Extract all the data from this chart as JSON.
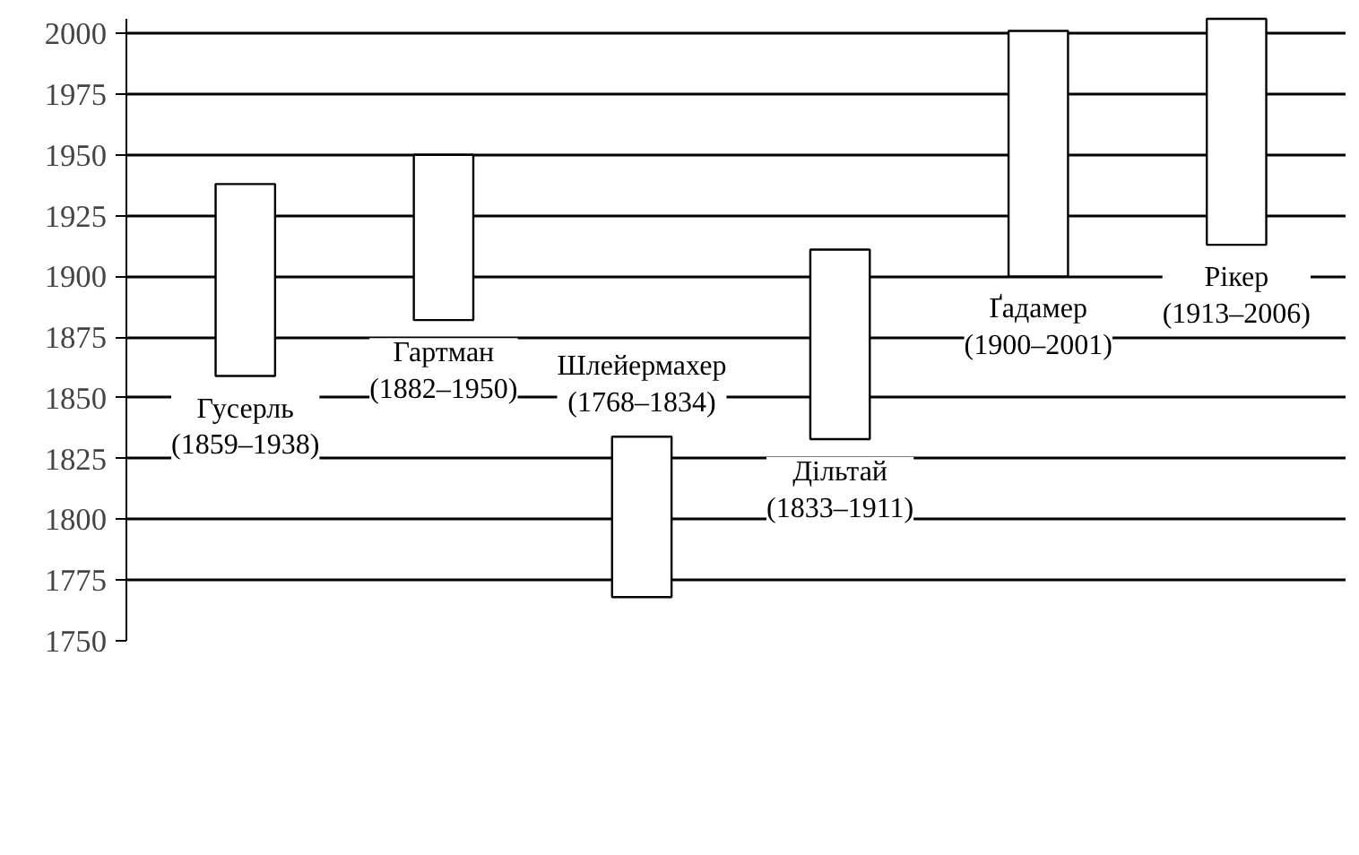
{
  "chart_data": {
    "type": "bar",
    "categories": [
      null,
      null,
      null,
      null,
      null,
      null
    ],
    "base": [
      1859,
      1882,
      1768,
      1833,
      1900,
      1913
    ],
    "values": [
      79,
      68,
      66,
      78,
      101,
      93
    ],
    "color": "#ffffff",
    "ylim": [
      1750,
      2006
    ],
    "yticks": [
      1750,
      1775,
      1800,
      1825,
      1850,
      1875,
      1900,
      1925,
      1950,
      1975,
      2000
    ],
    "grid": "y",
    "tick_labels": "y",
    "annotations": [
      "Гусерль\n(1859–1938)",
      "Гартман\n(1882–1950)",
      "Шлейермахер\n(1768–1834)",
      "Дільтай\n(1833–1911)",
      "Ґадамер\n(1900–2001)",
      "Рікер\n(1913–2006)"
    ]
  }
}
